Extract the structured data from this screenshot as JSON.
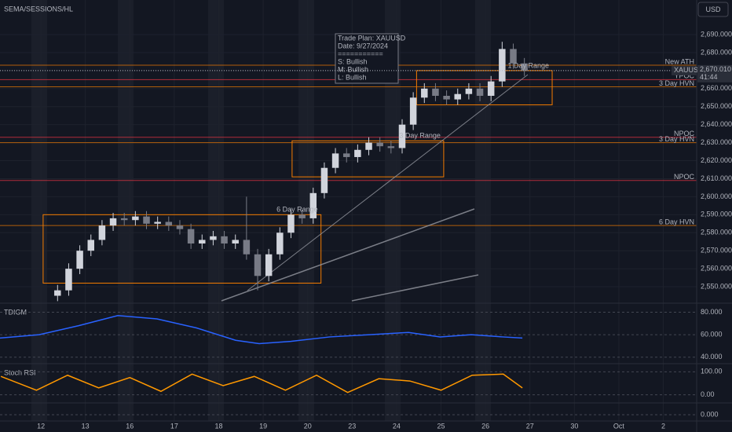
{
  "chart_data": {
    "type": "candlestick",
    "title": "SEMA/SESSIONS/HL",
    "currency": "USD",
    "symbol": "XAUUSD",
    "countdown": "41:44",
    "last_price": {
      "value": 2670.01,
      "label": "2,670.010"
    },
    "up_color": "#d1d4dc",
    "down_color": "#787b86",
    "xlim": [
      -0.92,
      14.75
    ],
    "xticks": [
      {
        "value": 0,
        "label": "12"
      },
      {
        "value": 1,
        "label": "13"
      },
      {
        "value": 2,
        "label": "16"
      },
      {
        "value": 3,
        "label": "17"
      },
      {
        "value": 4,
        "label": "18"
      },
      {
        "value": 5,
        "label": "19"
      },
      {
        "value": 6,
        "label": "20"
      },
      {
        "value": 7,
        "label": "23"
      },
      {
        "value": 8,
        "label": "24"
      },
      {
        "value": 9,
        "label": "25"
      },
      {
        "value": 10,
        "label": "26"
      },
      {
        "value": 11,
        "label": "27"
      },
      {
        "value": 12,
        "label": "30"
      },
      {
        "value": 13,
        "label": "Oct"
      },
      {
        "value": 14,
        "label": "2"
      }
    ],
    "ylim": [
      2541.3,
      2709.2
    ],
    "yticks": [
      {
        "value": 2550,
        "label": "2,550.000"
      },
      {
        "value": 2560,
        "label": "2,560.000"
      },
      {
        "value": 2570,
        "label": "2,570.000"
      },
      {
        "value": 2580,
        "label": "2,580.000"
      },
      {
        "value": 2590,
        "label": "2,590.000"
      },
      {
        "value": 2600,
        "label": "2,600.000"
      },
      {
        "value": 2610,
        "label": "2,610.000"
      },
      {
        "value": 2620,
        "label": "2,620.000"
      },
      {
        "value": 2630,
        "label": "2,630.000"
      },
      {
        "value": 2640,
        "label": "2,640.000"
      },
      {
        "value": 2650,
        "label": "2,650.000"
      },
      {
        "value": 2660,
        "label": "2,660.000"
      },
      {
        "value": 2670,
        "label": "2,670.000"
      },
      {
        "value": 2680,
        "label": "2,680.000"
      },
      {
        "value": 2690,
        "label": "2,690.000"
      }
    ],
    "candles": {
      "x": [
        0.375,
        0.625,
        0.875,
        1.125,
        1.375,
        1.625,
        1.875,
        2.125,
        2.375,
        2.625,
        2.875,
        3.125,
        3.375,
        3.625,
        3.875,
        4.125,
        4.375,
        4.625,
        4.875,
        5.125,
        5.375,
        5.625,
        5.875,
        6.125,
        6.375,
        6.625,
        6.875,
        7.125,
        7.375,
        7.625,
        7.875,
        8.125,
        8.375,
        8.625,
        8.875,
        9.125,
        9.375,
        9.625,
        9.875,
        10.125,
        10.375,
        10.625,
        10.875
      ],
      "open": [
        2545,
        2548,
        2560,
        2570,
        2576,
        2584,
        2588,
        2587,
        2589,
        2585,
        2586,
        2584,
        2582,
        2574,
        2576,
        2578,
        2574,
        2576,
        2568,
        2556,
        2568,
        2580,
        2590,
        2588,
        2602,
        2616,
        2624,
        2622,
        2626,
        2630,
        2628,
        2627,
        2640,
        2655,
        2660,
        2656,
        2654,
        2657,
        2660,
        2656,
        2664,
        2682,
        2674
      ],
      "high": [
        2551,
        2563,
        2573,
        2579,
        2587,
        2591,
        2591,
        2592,
        2592,
        2589,
        2589,
        2587,
        2585,
        2579,
        2581,
        2581,
        2579,
        2600,
        2571,
        2571,
        2583,
        2593,
        2593,
        2605,
        2619,
        2627,
        2627,
        2629,
        2633,
        2633,
        2631,
        2643,
        2658,
        2663,
        2663,
        2659,
        2660,
        2663,
        2663,
        2667,
        2686,
        2685,
        2677
      ],
      "low": [
        2542,
        2545,
        2557,
        2567,
        2573,
        2581,
        2584,
        2584,
        2582,
        2582,
        2581,
        2579,
        2571,
        2571,
        2573,
        2571,
        2571,
        2565,
        2548,
        2553,
        2565,
        2577,
        2585,
        2585,
        2599,
        2613,
        2619,
        2619,
        2623,
        2625,
        2624,
        2624,
        2637,
        2652,
        2653,
        2651,
        2651,
        2654,
        2653,
        2653,
        2661,
        2671,
        2667
      ],
      "close": [
        2548,
        2560,
        2570,
        2576,
        2584,
        2588,
        2587,
        2589,
        2585,
        2586,
        2584,
        2582,
        2574,
        2576,
        2578,
        2574,
        2576,
        2568,
        2556,
        2568,
        2580,
        2590,
        2588,
        2602,
        2616,
        2624,
        2622,
        2626,
        2630,
        2628,
        2627,
        2640,
        2655,
        2660,
        2656,
        2654,
        2657,
        2660,
        2656,
        2664,
        2682,
        2674,
        2670
      ]
    },
    "ranges": [
      {
        "label": "6 Day Range",
        "x": [
          0.05,
          6.3
        ],
        "y": [
          2552,
          2590
        ],
        "color": "#f57c00"
      },
      {
        "label": "3 Day Range",
        "x": [
          5.65,
          9.06
        ],
        "y": [
          2611,
          2631
        ],
        "color": "#f57c00"
      },
      {
        "label": "1 Day Range",
        "x": [
          8.45,
          11.5
        ],
        "y": [
          2651,
          2670
        ],
        "color": "#f57c00"
      }
    ],
    "levels": [
      {
        "label": "New ATH",
        "value": 2673,
        "color": "#f57c00"
      },
      {
        "label": "YPOC",
        "value": 2665,
        "color": "#f23645"
      },
      {
        "label": "3 Day HVN",
        "value": 2661,
        "color": "#f57c00"
      },
      {
        "label": "NPOC",
        "value": 2633,
        "color": "#f23645"
      },
      {
        "label": "3 Day HVN",
        "value": 2630,
        "color": "#f57c00"
      },
      {
        "label": "NPOC",
        "value": 2609,
        "color": "#f23645"
      },
      {
        "label": "6 Day HVN",
        "value": 2584,
        "color": "#f57c00"
      }
    ],
    "trade_plan": [
      "Trade Plan: XAUUSD",
      "Date: 9/27/2024",
      "===========",
      "S: Bullish",
      "M: Bullish",
      "L: Bullish"
    ],
    "panes": [
      {
        "title": "TDIGM",
        "ylim": [
          34.9,
          87.3
        ],
        "yticks": [
          {
            "value": 80,
            "label": "80.000"
          },
          {
            "value": 60,
            "label": "60.000"
          },
          {
            "value": 40,
            "label": "40.000"
          }
        ],
        "series": [
          {
            "color": "#2962ff",
            "x": [
              -0.92,
              -0.04,
              0.85,
              1.73,
              2.61,
              3.5,
              4.38,
              4.91,
              5.62,
              6.5,
              7.39,
              8.27,
              8.98,
              9.68,
              10.39,
              10.83
            ],
            "values": [
              57,
              60,
              68,
              77,
              74,
              66,
              55,
              52,
              54,
              58,
              60,
              62,
              58,
              60,
              58,
              57
            ]
          }
        ]
      },
      {
        "title": "Stoch RSI",
        "ylim": [
          -32,
          132
        ],
        "yticks": [
          {
            "value": 100,
            "label": "100.00"
          },
          {
            "value": 0,
            "label": "0.00"
          }
        ],
        "series": [
          {
            "color": "#ff9800",
            "x": [
              -0.9,
              -0.1,
              0.6,
              1.3,
              2,
              2.7,
              3.4,
              4.1,
              4.8,
              5.5,
              6.2,
              6.9,
              7.6,
              8.3,
              9,
              9.7,
              10.4,
              10.83
            ],
            "values": [
              80,
              20,
              85,
              30,
              75,
              15,
              90,
              40,
              80,
              20,
              85,
              10,
              70,
              60,
              20,
              85,
              90,
              30
            ]
          }
        ]
      },
      {
        "title": "",
        "ylim": [
          -5,
          10
        ],
        "yticks": [
          {
            "value": 0,
            "label": "0.000"
          }
        ],
        "series": []
      }
    ]
  }
}
